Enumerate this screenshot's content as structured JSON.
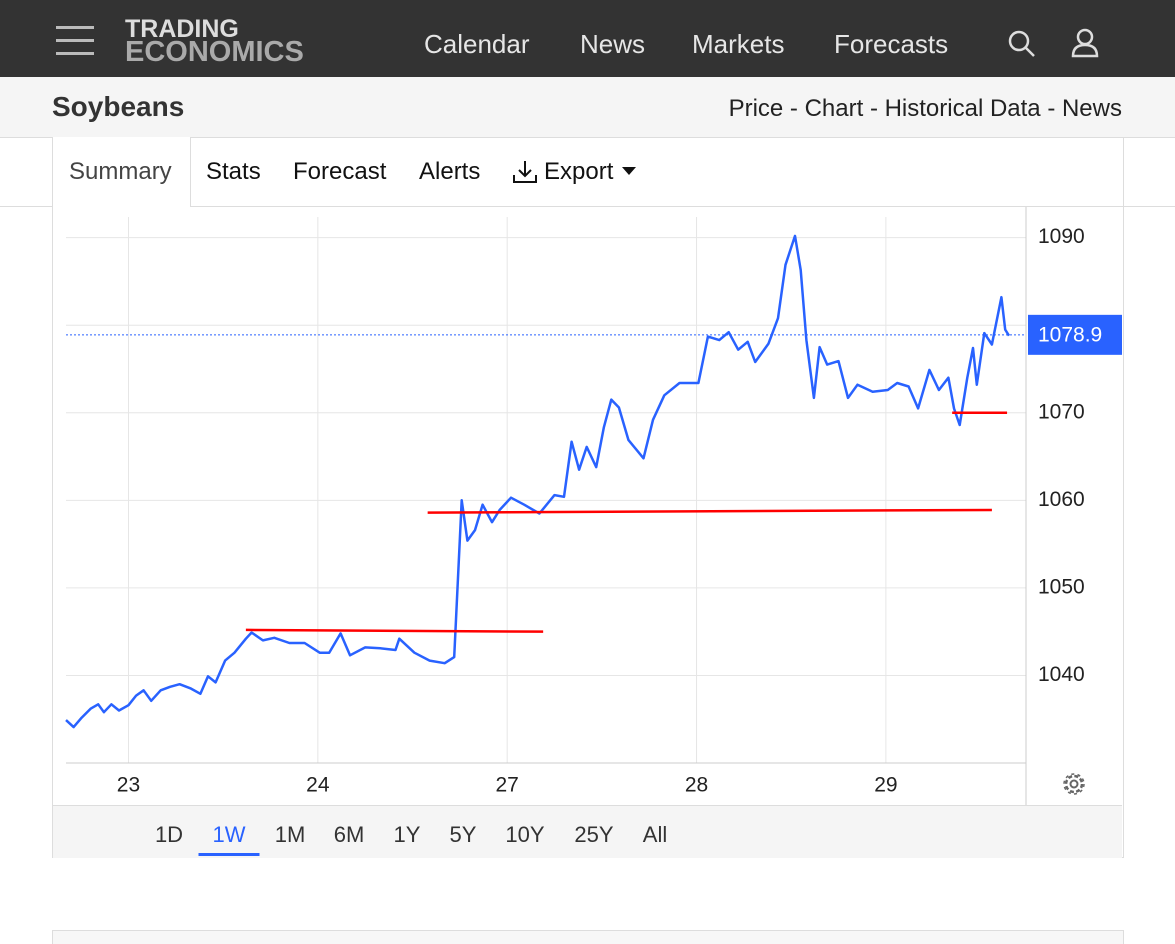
{
  "logo": {
    "line1": "TRADING",
    "line2": "ECONOMICS"
  },
  "nav": [
    "Calendar",
    "News",
    "Markets",
    "Forecasts"
  ],
  "header": {
    "title": "Soybeans",
    "links": "Price - Chart - Historical Data - News"
  },
  "tabs": [
    "Summary",
    "Stats",
    "Forecast",
    "Alerts",
    "Export"
  ],
  "ranges": [
    "1D",
    "1W",
    "1M",
    "6M",
    "1Y",
    "5Y",
    "10Y",
    "25Y",
    "All"
  ],
  "active_range": "1W",
  "chart_data": {
    "type": "line",
    "x": [
      -0.33,
      -0.29,
      -0.25,
      -0.2,
      -0.16,
      -0.13,
      -0.09,
      -0.05,
      0,
      0.04,
      0.08,
      0.12,
      0.17,
      0.22,
      0.27,
      0.33,
      0.38,
      0.42,
      0.46,
      0.51,
      0.56,
      0.62,
      0.65,
      0.71,
      0.77,
      0.85,
      0.93,
      1.01,
      1.06,
      1.12,
      1.17,
      1.25,
      1.33,
      1.41,
      1.43,
      1.51,
      1.59,
      1.67,
      1.72,
      1.76,
      1.79,
      1.83,
      1.87,
      1.92,
      1.96,
      2.02,
      2.09,
      2.17,
      2.25,
      2.3,
      2.34,
      2.38,
      2.42,
      2.47,
      2.51,
      2.55,
      2.59,
      2.64,
      2.72,
      2.77,
      2.83,
      2.91,
      3.01,
      3.06,
      3.12,
      3.17,
      3.22,
      3.27,
      3.31,
      3.38,
      3.43,
      3.47,
      3.52,
      3.55,
      3.58,
      3.62,
      3.65,
      3.69,
      3.75,
      3.8,
      3.85,
      3.93,
      4.01,
      4.06,
      4.12,
      4.17,
      4.23,
      4.28,
      4.33,
      4.36,
      4.39,
      4.43,
      4.46,
      4.48,
      4.52,
      4.56,
      4.61,
      4.63,
      4.65
    ],
    "series": [
      {
        "color": "#2962ff",
        "values": [
          1034.9,
          1034.1,
          1035.1,
          1036.2,
          1036.7,
          1035.8,
          1036.7,
          1036.0,
          1036.6,
          1037.7,
          1038.3,
          1037.1,
          1038.3,
          1038.7,
          1039.0,
          1038.5,
          1037.9,
          1039.9,
          1039.2,
          1041.7,
          1042.6,
          1044.2,
          1044.9,
          1044.0,
          1044.3,
          1043.7,
          1043.7,
          1042.6,
          1042.6,
          1044.8,
          1042.3,
          1043.2,
          1043.1,
          1042.9,
          1044.2,
          1042.6,
          1041.7,
          1041.4,
          1042.1,
          1060.0,
          1055.4,
          1056.6,
          1059.5,
          1057.5,
          1058.9,
          1060.3,
          1059.5,
          1058.5,
          1060.6,
          1060.4,
          1066.7,
          1063.5,
          1066.1,
          1063.8,
          1068.3,
          1071.5,
          1070.6,
          1066.9,
          1064.8,
          1069.2,
          1072.0,
          1073.4,
          1073.4,
          1078.7,
          1078.3,
          1079.2,
          1077.2,
          1078.1,
          1075.8,
          1077.9,
          1080.8,
          1086.9,
          1090.2,
          1086.3,
          1078.3,
          1071.7,
          1077.5,
          1075.5,
          1075.9,
          1071.7,
          1073.2,
          1072.4,
          1072.6,
          1073.4,
          1073.0,
          1070.5,
          1074.9,
          1072.6,
          1074.0,
          1070.5,
          1068.6,
          1074.0,
          1077.4,
          1073.2,
          1079.1,
          1077.8,
          1083.2,
          1079.5,
          1078.8
        ]
      }
    ],
    "xlim": [
      -0.33,
      4.74
    ],
    "xticks": [
      {
        "value": 0,
        "label": "23"
      },
      {
        "value": 1,
        "label": "24"
      },
      {
        "value": 2,
        "label": "27"
      },
      {
        "value": 3,
        "label": "28"
      },
      {
        "value": 4,
        "label": "29"
      }
    ],
    "ylim": [
      1030,
      1093.5
    ],
    "yticks": [
      1040,
      1050,
      1060,
      1070,
      1080,
      1090
    ],
    "grid": true,
    "last_value": 1078.9,
    "trend_lines": [
      {
        "color": "#ff0000",
        "x1": 0.62,
        "x2": 2.19,
        "y1": 1045.2,
        "y2": 1045.0
      },
      {
        "color": "#ff0000",
        "x1": 1.58,
        "x2": 4.56,
        "y1": 1058.6,
        "y2": 1058.9
      },
      {
        "color": "#ff0000",
        "x1": 4.35,
        "x2": 4.64,
        "y1": 1070.0,
        "y2": 1070.0
      }
    ]
  }
}
